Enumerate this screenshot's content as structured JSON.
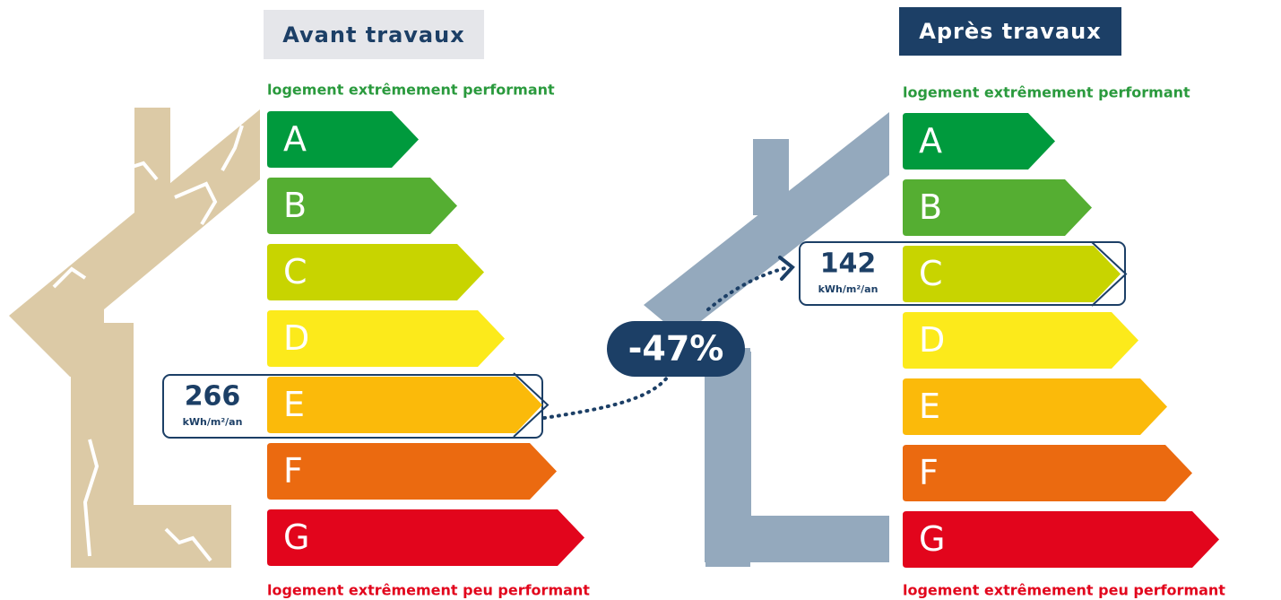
{
  "panels": [
    {
      "title": "Avant travaux",
      "top_label": "logement extrêmement performant",
      "bottom_label": "logement extrêmement peu performant",
      "classes": [
        {
          "letter": "A",
          "color": "#009a3d"
        },
        {
          "letter": "B",
          "color": "#55ae32"
        },
        {
          "letter": "C",
          "color": "#c8d400"
        },
        {
          "letter": "D",
          "color": "#fcea1b"
        },
        {
          "letter": "E",
          "color": "#fbba0a"
        },
        {
          "letter": "F",
          "color": "#eb6a10"
        },
        {
          "letter": "G",
          "color": "#e2051c"
        }
      ],
      "value": 266,
      "unit": "kWh/m²/an"
    },
    {
      "title": "Après travaux",
      "top_label": "logement extrêmement performant",
      "bottom_label": "logement extrêmement peu performant",
      "classes": [
        {
          "letter": "A",
          "color": "#009a3d"
        },
        {
          "letter": "B",
          "color": "#55ae32"
        },
        {
          "letter": "C",
          "color": "#c8d400"
        },
        {
          "letter": "D",
          "color": "#fcea1b"
        },
        {
          "letter": "E",
          "color": "#fbba0a"
        },
        {
          "letter": "F",
          "color": "#eb6a10"
        },
        {
          "letter": "G",
          "color": "#e2051c"
        }
      ],
      "value": 142,
      "unit": "kWh/m²/an"
    }
  ],
  "reduction": "-47%"
}
